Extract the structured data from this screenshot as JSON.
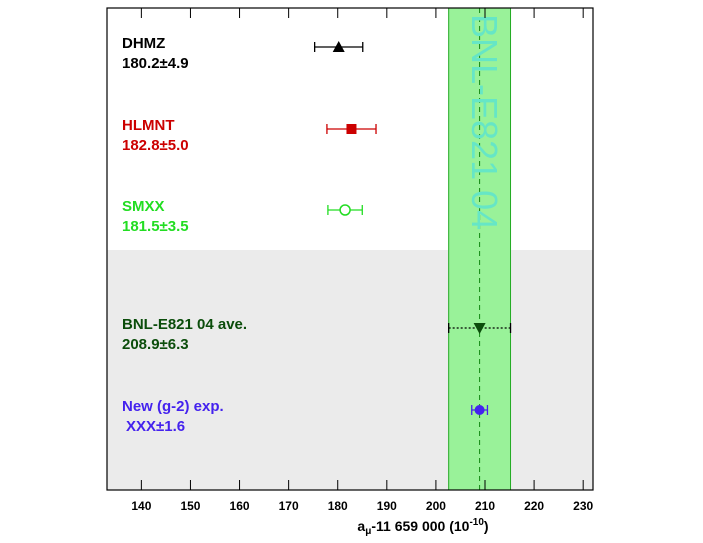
{
  "chart_data": {
    "type": "forest",
    "entries": [
      {
        "name": "DHMZ",
        "label": "180.2±4.9",
        "value": 180.2,
        "error": 4.9,
        "color": "#000000",
        "marker": "triangle-up",
        "error_style": "solid"
      },
      {
        "name": "HLMNT",
        "label": "182.8±5.0",
        "value": 182.8,
        "error": 5.0,
        "color": "#cc0000",
        "marker": "square",
        "error_style": "solid"
      },
      {
        "name": "SMXX",
        "label": "181.5±3.5",
        "value": 181.5,
        "error": 3.5,
        "color": "#22dd22",
        "marker": "open-circle",
        "error_style": "solid"
      },
      {
        "name": "BNL-E821 04 ave.",
        "label": "208.9±6.3",
        "value": 208.9,
        "error": 6.3,
        "color": "#0b4d0b",
        "marker": "triangle-down",
        "error_style": "dotted"
      },
      {
        "name": "New (g-2) exp.",
        "label": "XXX±1.6",
        "value": 208.9,
        "error": 1.6,
        "color": "#4422ee",
        "marker": "circle",
        "error_style": "dashed"
      }
    ],
    "band": {
      "text": "BNL-E821 04",
      "from": 202.6,
      "to": 215.2,
      "center": 208.9,
      "color": "#99f299",
      "text_color": "#66e6c6"
    },
    "xlabel": {
      "base": "a",
      "sub": "μ",
      "main": "-11 659 000 (10",
      "sup": "-10",
      "end": ")"
    },
    "xlim": [
      133,
      232
    ],
    "xticks": [
      140,
      150,
      160,
      170,
      180,
      190,
      200,
      210,
      220,
      230
    ]
  }
}
